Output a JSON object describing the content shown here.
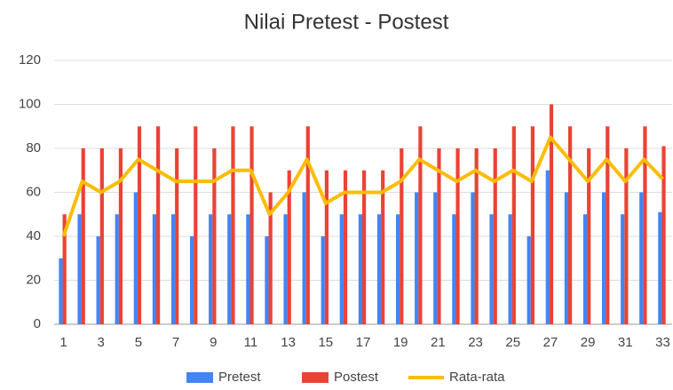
{
  "chart_data": {
    "type": "bar",
    "title": "Nilai Pretest - Postest",
    "categories": [
      "1",
      null,
      "3",
      null,
      "5",
      null,
      "7",
      null,
      "9",
      null,
      "11",
      null,
      "13",
      null,
      "15",
      null,
      "17",
      null,
      "19",
      null,
      "21",
      null,
      "23",
      null,
      "25",
      null,
      "27",
      null,
      "29",
      null,
      "31",
      null,
      "33"
    ],
    "series": [
      {
        "name": "Pretest",
        "color": "#4285f4",
        "type": "bar",
        "values": [
          30,
          50,
          40,
          50,
          60,
          50,
          50,
          40,
          50,
          50,
          50,
          40,
          50,
          60,
          40,
          50,
          50,
          50,
          50,
          60,
          60,
          50,
          60,
          50,
          50,
          40,
          70,
          60,
          50,
          60,
          50,
          60,
          51
        ]
      },
      {
        "name": "Postest",
        "color": "#ea4335",
        "type": "bar",
        "values": [
          50,
          80,
          80,
          80,
          90,
          90,
          80,
          90,
          80,
          90,
          90,
          60,
          70,
          90,
          70,
          70,
          70,
          70,
          80,
          90,
          80,
          80,
          80,
          80,
          90,
          90,
          100,
          90,
          80,
          90,
          80,
          90,
          81
        ]
      },
      {
        "name": "Rata-rata",
        "color": "#fbbc04",
        "type": "line",
        "values": [
          40,
          65,
          60,
          65,
          75,
          70,
          65,
          65,
          65,
          70,
          70,
          50,
          60,
          75,
          55,
          60,
          60,
          60,
          65,
          75,
          70,
          65,
          70,
          65,
          70,
          65,
          85,
          75,
          65,
          75,
          65,
          75,
          66
        ]
      }
    ],
    "ylim": [
      0,
      120
    ],
    "yticks": [
      0,
      20,
      40,
      60,
      80,
      100,
      120
    ],
    "grid": true,
    "legend": "bottom"
  }
}
